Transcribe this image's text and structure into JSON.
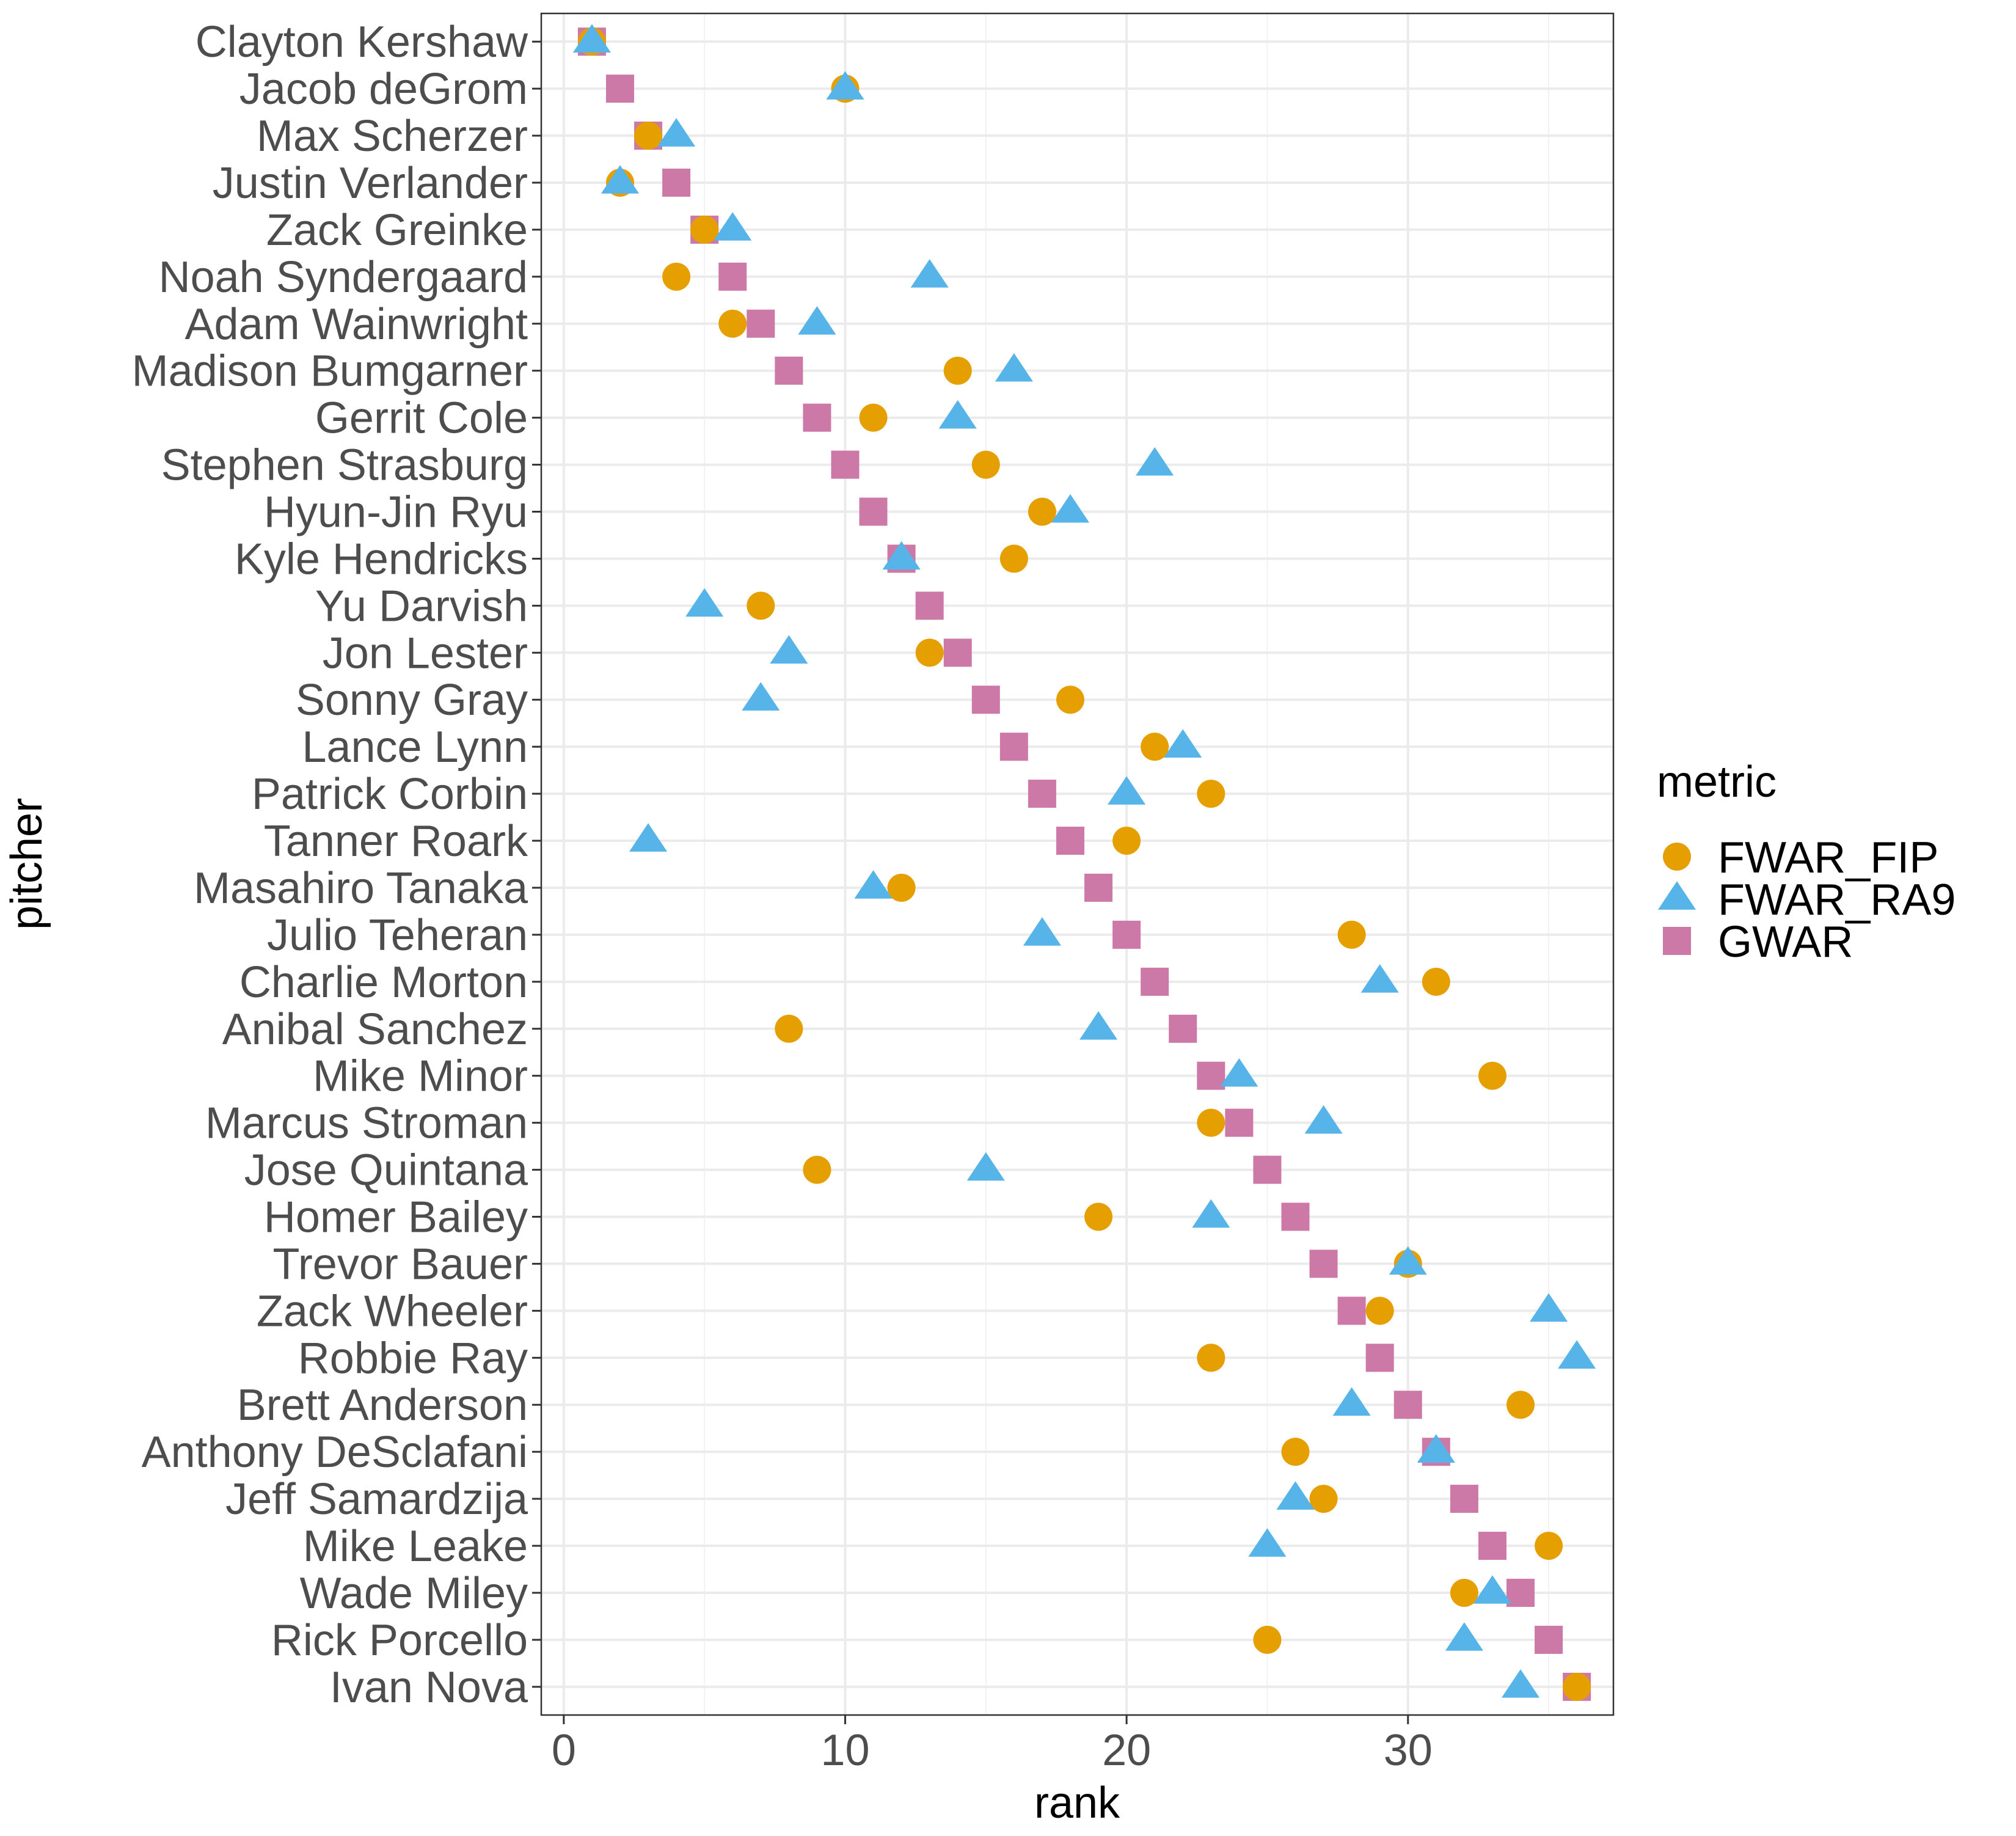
{
  "chart_data": {
    "type": "scatter",
    "title": "",
    "xlabel": "rank",
    "ylabel": "pitcher",
    "xlim": [
      -0.8,
      37.3
    ],
    "xticks": [
      0,
      10,
      20,
      30
    ],
    "grid": true,
    "legend_title": "metric",
    "legend_position": "right",
    "categories": [
      "Clayton Kershaw",
      "Jacob deGrom",
      "Max Scherzer",
      "Justin Verlander",
      "Zack Greinke",
      "Noah Syndergaard",
      "Adam Wainwright",
      "Madison Bumgarner",
      "Gerrit Cole",
      "Stephen Strasburg",
      "Hyun-Jin Ryu",
      "Kyle Hendricks",
      "Yu Darvish",
      "Jon Lester",
      "Sonny Gray",
      "Lance Lynn",
      "Patrick Corbin",
      "Tanner Roark",
      "Masahiro Tanaka",
      "Julio Teheran",
      "Charlie Morton",
      "Anibal Sanchez",
      "Mike Minor",
      "Marcus Stroman",
      "Jose Quintana",
      "Homer Bailey",
      "Trevor Bauer",
      "Zack Wheeler",
      "Robbie Ray",
      "Brett Anderson",
      "Anthony DeSclafani",
      "Jeff Samardzija",
      "Mike Leake",
      "Wade Miley",
      "Rick Porcello",
      "Ivan Nova"
    ],
    "series": [
      {
        "name": "FWAR_FIP",
        "shape": "circle",
        "color": "#E69F00",
        "values": [
          1,
          10,
          3,
          2,
          5,
          4,
          6,
          14,
          11,
          15,
          17,
          16,
          7,
          13,
          18,
          21,
          23,
          20,
          12,
          28,
          31,
          8,
          33,
          23,
          9,
          19,
          30,
          29,
          23,
          34,
          26,
          27,
          35,
          32,
          25,
          36
        ]
      },
      {
        "name": "FWAR_RA9",
        "shape": "triangle",
        "color": "#56B4E9",
        "values": [
          1,
          10,
          4,
          2,
          6,
          13,
          9,
          16,
          14,
          21,
          18,
          12,
          5,
          8,
          7,
          22,
          20,
          3,
          11,
          17,
          29,
          19,
          24,
          27,
          15,
          23,
          30,
          35,
          36,
          28,
          31,
          26,
          25,
          33,
          32,
          34
        ]
      },
      {
        "name": "GWAR",
        "shape": "square",
        "color": "#CC79A7",
        "values": [
          1,
          2,
          3,
          4,
          5,
          6,
          7,
          8,
          9,
          10,
          11,
          12,
          13,
          14,
          15,
          16,
          17,
          18,
          19,
          20,
          21,
          22,
          23,
          24,
          25,
          26,
          27,
          28,
          29,
          30,
          31,
          32,
          33,
          34,
          35,
          36
        ]
      }
    ]
  }
}
